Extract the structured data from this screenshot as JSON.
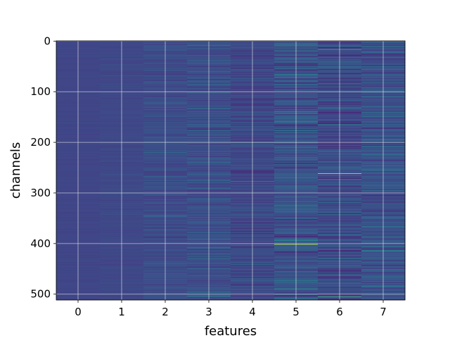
{
  "chart_data": {
    "type": "heatmap",
    "title": "",
    "xlabel": "features",
    "ylabel": "channels",
    "x_categories": [
      "0",
      "1",
      "2",
      "3",
      "4",
      "5",
      "6",
      "7"
    ],
    "y_range": [
      0,
      511
    ],
    "y_ticks": [
      "0",
      "100",
      "200",
      "300",
      "400",
      "500"
    ],
    "n_rows": 512,
    "colormap": "viridis",
    "grid": true,
    "colors": {
      "low": "#440154",
      "mid_low": "#3b528b",
      "mid": "#21918c",
      "mid_high": "#5ec962",
      "high": "#fde725",
      "grid": "#e8e8e8"
    },
    "column_stats": [
      {
        "feature": "0",
        "baseline": 0.26,
        "spread": 0.02,
        "bright_rows": []
      },
      {
        "feature": "1",
        "baseline": 0.27,
        "spread": 0.04,
        "bright_rows": []
      },
      {
        "feature": "2",
        "baseline": 0.29,
        "spread": 0.1,
        "bright_rows": [
          [
            220,
            0.5
          ],
          [
            345,
            0.55
          ]
        ]
      },
      {
        "feature": "3",
        "baseline": 0.3,
        "spread": 0.13,
        "bright_rows": [
          [
            240,
            0.5
          ],
          [
            505,
            0.55
          ]
        ]
      },
      {
        "feature": "4",
        "baseline": 0.27,
        "spread": 0.13,
        "bright_rows": [
          [
            100,
            0.5
          ]
        ]
      },
      {
        "feature": "5",
        "baseline": 0.31,
        "spread": 0.2,
        "bright_rows": [
          [
            10,
            0.6
          ],
          [
            55,
            0.5
          ],
          [
            402,
            0.95
          ],
          [
            490,
            0.7
          ]
        ]
      },
      {
        "feature": "6",
        "baseline": 0.28,
        "spread": 0.2,
        "bright_rows": [
          [
            90,
            0.5
          ],
          [
            218,
            0.55
          ],
          [
            262,
            1.0
          ],
          [
            505,
            0.8
          ]
        ]
      },
      {
        "feature": "7",
        "baseline": 0.31,
        "spread": 0.18,
        "bright_rows": [
          [
            10,
            0.6
          ],
          [
            255,
            0.5
          ],
          [
            415,
            0.55
          ],
          [
            475,
            0.6
          ]
        ]
      }
    ]
  }
}
